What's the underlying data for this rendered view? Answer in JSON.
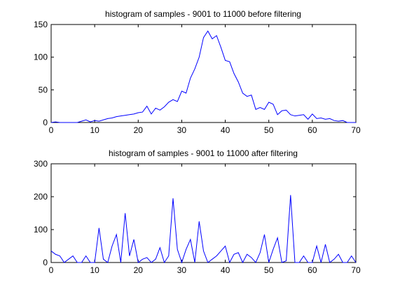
{
  "chart_data": [
    {
      "type": "line",
      "title": "histogram of samples - 9001 to 11000 before filtering",
      "xlabel": "",
      "ylabel": "",
      "xlim": [
        0,
        70
      ],
      "ylim": [
        0,
        150
      ],
      "xticks": [
        "0",
        "10",
        "20",
        "30",
        "40",
        "50",
        "60",
        "70"
      ],
      "yticks": [
        "0",
        "50",
        "100",
        "150"
      ],
      "grid": false,
      "line_color": "#0000ff",
      "series": [
        {
          "x": [
            0,
            1,
            2,
            3,
            4,
            5,
            6,
            7,
            8,
            9,
            10,
            11,
            12,
            13,
            14,
            15,
            16,
            17,
            18,
            19,
            20,
            21,
            22,
            23,
            24,
            25,
            26,
            27,
            28,
            29,
            30,
            31,
            32,
            33,
            34,
            35,
            36,
            37,
            38,
            39,
            40,
            41,
            42,
            43,
            44,
            45,
            46,
            47,
            48,
            49,
            50,
            51,
            52,
            53,
            54,
            55,
            56,
            57,
            58,
            59,
            60,
            61,
            62,
            63,
            64,
            65,
            66,
            67,
            68,
            69,
            70
          ],
          "y": [
            0,
            1,
            0,
            0,
            0,
            0,
            0,
            2,
            4,
            1,
            3,
            2,
            4,
            6,
            7,
            9,
            10,
            11,
            12,
            13,
            15,
            16,
            25,
            13,
            22,
            19,
            24,
            31,
            35,
            32,
            48,
            45,
            68,
            82,
            100,
            130,
            140,
            128,
            133,
            115,
            95,
            93,
            75,
            62,
            45,
            40,
            42,
            20,
            23,
            20,
            31,
            28,
            12,
            18,
            19,
            12,
            10,
            11,
            12,
            5,
            13,
            6,
            7,
            5,
            6,
            3,
            2,
            3,
            0,
            0,
            0
          ]
        }
      ]
    },
    {
      "type": "line",
      "title": "histogram of samples - 9001 to 11000 after filtering",
      "xlabel": "",
      "ylabel": "",
      "xlim": [
        0,
        70
      ],
      "ylim": [
        0,
        300
      ],
      "xticks": [
        "0",
        "10",
        "20",
        "30",
        "40",
        "50",
        "60",
        "70"
      ],
      "yticks": [
        "0",
        "100",
        "200",
        "300"
      ],
      "grid": false,
      "line_color": "#0000ff",
      "series": [
        {
          "x": [
            0,
            1,
            2,
            3,
            4,
            5,
            6,
            7,
            8,
            9,
            10,
            11,
            12,
            13,
            14,
            15,
            16,
            17,
            18,
            19,
            20,
            21,
            22,
            23,
            24,
            25,
            26,
            27,
            28,
            29,
            30,
            31,
            32,
            33,
            34,
            35,
            36,
            37,
            38,
            39,
            40,
            41,
            42,
            43,
            44,
            45,
            46,
            47,
            48,
            49,
            50,
            51,
            52,
            53,
            54,
            55,
            56,
            57,
            58,
            59,
            60,
            61,
            62,
            63,
            64,
            65,
            66,
            67,
            68,
            69,
            70
          ],
          "y": [
            35,
            25,
            20,
            0,
            10,
            20,
            0,
            0,
            20,
            0,
            0,
            105,
            10,
            0,
            50,
            85,
            0,
            150,
            20,
            70,
            0,
            10,
            15,
            0,
            10,
            45,
            0,
            20,
            195,
            40,
            0,
            40,
            70,
            0,
            125,
            35,
            0,
            10,
            20,
            35,
            50,
            0,
            25,
            30,
            0,
            25,
            15,
            0,
            30,
            85,
            0,
            40,
            75,
            0,
            5,
            205,
            0,
            0,
            20,
            0,
            0,
            50,
            0,
            55,
            0,
            10,
            25,
            0,
            0,
            20,
            0
          ]
        }
      ]
    }
  ]
}
